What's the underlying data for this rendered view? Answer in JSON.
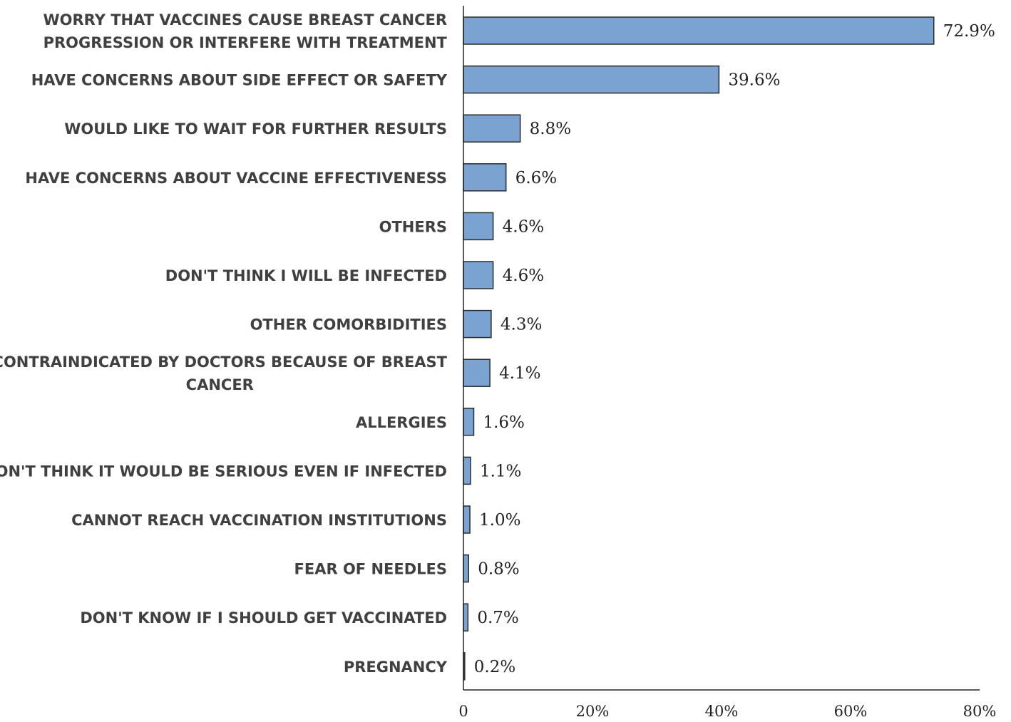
{
  "chart_data": {
    "type": "bar",
    "orientation": "horizontal",
    "categories": [
      [
        "WORRY THAT VACCINES CAUSE BREAST CANCER",
        "PROGRESSION OR INTERFERE WITH TREATMENT"
      ],
      [
        "HAVE CONCERNS ABOUT SIDE EFFECT OR SAFETY"
      ],
      [
        "WOULD LIKE TO WAIT FOR FURTHER RESULTS"
      ],
      [
        "HAVE CONCERNS ABOUT VACCINE EFFECTIVENESS"
      ],
      [
        "OTHERS"
      ],
      [
        "DON'T THINK I WILL BE INFECTED"
      ],
      [
        "OTHER COMORBIDITIES"
      ],
      [
        "CONTRAINDICATED BY DOCTORS BECAUSE OF BREAST",
        "CANCER"
      ],
      [
        "ALLERGIES"
      ],
      [
        "DON'T THINK IT WOULD BE SERIOUS EVEN IF INFECTED"
      ],
      [
        "CANNOT REACH VACCINATION INSTITUTIONS"
      ],
      [
        "FEAR OF NEEDLES"
      ],
      [
        "DON'T KNOW IF I SHOULD GET VACCINATED"
      ],
      [
        "PREGNANCY"
      ]
    ],
    "values": [
      72.9,
      39.6,
      8.8,
      6.6,
      4.6,
      4.6,
      4.3,
      4.1,
      1.6,
      1.1,
      1.0,
      0.8,
      0.7,
      0.2
    ],
    "value_labels": [
      "72.9%",
      "39.6%",
      "8.8%",
      "6.6%",
      "4.6%",
      "4.6%",
      "4.3%",
      "4.1%",
      "1.6%",
      "1.1%",
      "1.0%",
      "0.8%",
      "0.7%",
      "0.2%"
    ],
    "xlim": [
      0,
      80
    ],
    "xticks": [
      0,
      20,
      40,
      60,
      80
    ],
    "xtick_labels": [
      "0",
      "20%",
      "40%",
      "60%",
      "80%"
    ],
    "bar_color": "#7aa3d2",
    "bar_edge_color": "#2b2b2b",
    "grid": false,
    "legend": "none"
  }
}
